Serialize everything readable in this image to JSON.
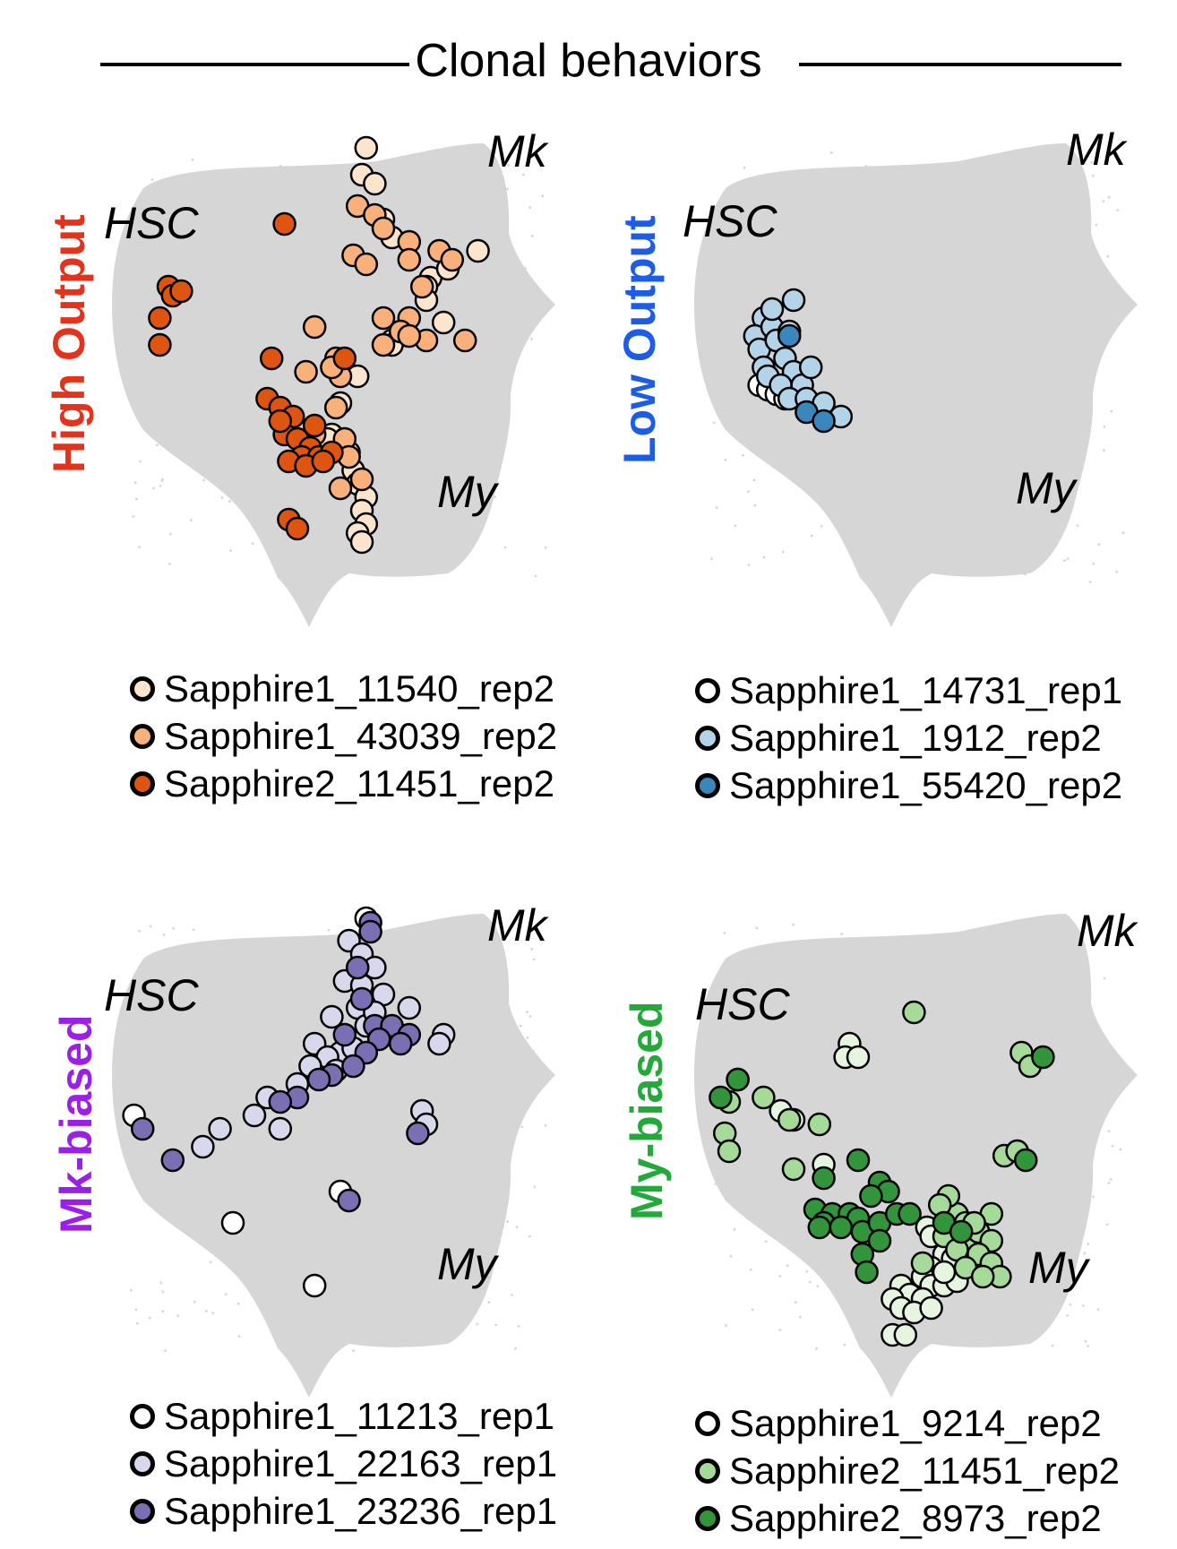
{
  "title": "Clonal behaviors",
  "chart_data": [
    {
      "type": "scatter",
      "row_label": "High Output",
      "row_label_color": "#e5331b",
      "annotations": {
        "hsc": "HSC",
        "mk": "Mk",
        "my": "My"
      },
      "series": [
        {
          "name": "Sapphire1_11540_rep2",
          "color": "#fde4cc",
          "points": [
            [
              0.56,
              0.02
            ],
            [
              0.55,
              0.08
            ],
            [
              0.58,
              0.1
            ],
            [
              0.6,
              0.18
            ],
            [
              0.62,
              0.22
            ],
            [
              0.71,
              0.31
            ],
            [
              0.7,
              0.33
            ],
            [
              0.75,
              0.29
            ],
            [
              0.82,
              0.25
            ],
            [
              0.7,
              0.36
            ],
            [
              0.62,
              0.45
            ],
            [
              0.54,
              0.53
            ],
            [
              0.5,
              0.59
            ],
            [
              0.48,
              0.66
            ],
            [
              0.47,
              0.67
            ],
            [
              0.52,
              0.7
            ],
            [
              0.53,
              0.74
            ],
            [
              0.54,
              0.77
            ],
            [
              0.56,
              0.8
            ],
            [
              0.55,
              0.83
            ],
            [
              0.56,
              0.86
            ],
            [
              0.54,
              0.88
            ],
            [
              0.55,
              0.9
            ],
            [
              0.62,
              0.46
            ],
            [
              0.74,
              0.41
            ]
          ]
        },
        {
          "name": "Sapphire1_43039_rep2",
          "color": "#f9b07a",
          "points": [
            [
              0.54,
              0.15
            ],
            [
              0.58,
              0.17
            ],
            [
              0.6,
              0.2
            ],
            [
              0.66,
              0.23
            ],
            [
              0.53,
              0.26
            ],
            [
              0.66,
              0.27
            ],
            [
              0.73,
              0.25
            ],
            [
              0.76,
              0.27
            ],
            [
              0.69,
              0.33
            ],
            [
              0.6,
              0.4
            ],
            [
              0.66,
              0.4
            ],
            [
              0.44,
              0.42
            ],
            [
              0.64,
              0.43
            ],
            [
              0.7,
              0.45
            ],
            [
              0.6,
              0.46
            ],
            [
              0.79,
              0.45
            ],
            [
              0.49,
              0.49
            ],
            [
              0.5,
              0.53
            ],
            [
              0.48,
              0.51
            ],
            [
              0.42,
              0.52
            ],
            [
              0.49,
              0.6
            ],
            [
              0.44,
              0.66
            ],
            [
              0.51,
              0.67
            ],
            [
              0.52,
              0.71
            ],
            [
              0.55,
              0.76
            ],
            [
              0.5,
              0.78
            ],
            [
              0.66,
              0.44
            ],
            [
              0.56,
              0.28
            ]
          ]
        },
        {
          "name": "Sapphire2_11451_rep2",
          "color": "#dd5511",
          "points": [
            [
              0.1,
              0.33
            ],
            [
              0.11,
              0.35
            ],
            [
              0.13,
              0.34
            ],
            [
              0.08,
              0.4
            ],
            [
              0.08,
              0.46
            ],
            [
              0.37,
              0.19
            ],
            [
              0.34,
              0.49
            ],
            [
              0.33,
              0.58
            ],
            [
              0.36,
              0.6
            ],
            [
              0.39,
              0.62
            ],
            [
              0.37,
              0.66
            ],
            [
              0.4,
              0.67
            ],
            [
              0.43,
              0.69
            ],
            [
              0.41,
              0.71
            ],
            [
              0.45,
              0.71
            ],
            [
              0.38,
              0.72
            ],
            [
              0.42,
              0.73
            ],
            [
              0.48,
              0.7
            ],
            [
              0.46,
              0.72
            ],
            [
              0.51,
              0.49
            ],
            [
              0.38,
              0.85
            ],
            [
              0.4,
              0.87
            ],
            [
              0.36,
              0.63
            ],
            [
              0.44,
              0.64
            ]
          ]
        }
      ]
    },
    {
      "type": "scatter",
      "row_label": "Low Output",
      "row_label_color": "#1c5ce6",
      "annotations": {
        "hsc": "HSC",
        "mk": "Mk",
        "my": "My"
      },
      "series": [
        {
          "name": "Sapphire1_14731_rep1",
          "color": "#ffffff",
          "points": [
            [
              0.12,
              0.55
            ],
            [
              0.14,
              0.56
            ],
            [
              0.16,
              0.57
            ],
            [
              0.18,
              0.58
            ]
          ]
        },
        {
          "name": "Sapphire1_1912_rep2",
          "color": "#b3d3e8",
          "points": [
            [
              0.13,
              0.4
            ],
            [
              0.11,
              0.44
            ],
            [
              0.15,
              0.42
            ],
            [
              0.12,
              0.47
            ],
            [
              0.16,
              0.45
            ],
            [
              0.13,
              0.51
            ],
            [
              0.18,
              0.49
            ],
            [
              0.14,
              0.53
            ],
            [
              0.2,
              0.52
            ],
            [
              0.17,
              0.55
            ],
            [
              0.22,
              0.55
            ],
            [
              0.24,
              0.51
            ],
            [
              0.19,
              0.58
            ],
            [
              0.23,
              0.58
            ],
            [
              0.27,
              0.59
            ],
            [
              0.31,
              0.62
            ],
            [
              0.15,
              0.38
            ],
            [
              0.19,
              0.43
            ],
            [
              0.2,
              0.36
            ]
          ]
        },
        {
          "name": "Sapphire1_55420_rep2",
          "color": "#3a87be",
          "points": [
            [
              0.19,
              0.44
            ],
            [
              0.23,
              0.61
            ],
            [
              0.27,
              0.63
            ]
          ]
        }
      ]
    },
    {
      "type": "scatter",
      "row_label": "Mk-biased",
      "row_label_color": "#9b1fe6",
      "annotations": {
        "hsc": "HSC",
        "mk": "Mk",
        "my": "My"
      },
      "series": [
        {
          "name": "Sapphire1_11213_rep1",
          "color": "#ffffff",
          "points": [
            [
              0.02,
              0.46
            ],
            [
              0.25,
              0.7
            ],
            [
              0.44,
              0.84
            ],
            [
              0.56,
              0.02
            ],
            [
              0.5,
              0.63
            ]
          ]
        },
        {
          "name": "Sapphire1_22163_rep1",
          "color": "#d8d8ec",
          "points": [
            [
              0.52,
              0.07
            ],
            [
              0.55,
              0.1
            ],
            [
              0.58,
              0.13
            ],
            [
              0.51,
              0.16
            ],
            [
              0.55,
              0.17
            ],
            [
              0.6,
              0.19
            ],
            [
              0.54,
              0.22
            ],
            [
              0.48,
              0.24
            ],
            [
              0.56,
              0.26
            ],
            [
              0.6,
              0.27
            ],
            [
              0.44,
              0.3
            ],
            [
              0.5,
              0.32
            ],
            [
              0.47,
              0.33
            ],
            [
              0.43,
              0.35
            ],
            [
              0.4,
              0.39
            ],
            [
              0.33,
              0.42
            ],
            [
              0.3,
              0.46
            ],
            [
              0.22,
              0.49
            ],
            [
              0.18,
              0.53
            ],
            [
              0.53,
              0.31
            ],
            [
              0.49,
              0.36
            ],
            [
              0.58,
              0.23
            ],
            [
              0.66,
              0.22
            ],
            [
              0.74,
              0.28
            ],
            [
              0.73,
              0.3
            ],
            [
              0.69,
              0.45
            ],
            [
              0.7,
              0.48
            ],
            [
              0.36,
              0.49
            ]
          ]
        },
        {
          "name": "Sapphire1_23236_rep1",
          "color": "#7a6fb3",
          "points": [
            [
              0.57,
              0.03
            ],
            [
              0.57,
              0.05
            ],
            [
              0.54,
              0.13
            ],
            [
              0.55,
              0.2
            ],
            [
              0.58,
              0.26
            ],
            [
              0.62,
              0.26
            ],
            [
              0.66,
              0.28
            ],
            [
              0.64,
              0.3
            ],
            [
              0.59,
              0.29
            ],
            [
              0.56,
              0.32
            ],
            [
              0.53,
              0.35
            ],
            [
              0.48,
              0.37
            ],
            [
              0.45,
              0.38
            ],
            [
              0.4,
              0.42
            ],
            [
              0.36,
              0.43
            ],
            [
              0.04,
              0.49
            ],
            [
              0.11,
              0.56
            ],
            [
              0.68,
              0.5
            ],
            [
              0.52,
              0.65
            ],
            [
              0.51,
              0.28
            ]
          ]
        }
      ]
    },
    {
      "type": "scatter",
      "row_label": "My-biased",
      "row_label_color": "#23a83a",
      "annotations": {
        "hsc": "HSC",
        "mk": "Mk",
        "my": "My"
      },
      "series": [
        {
          "name": "Sapphire1_9214_rep2",
          "color": "#e6f5e0",
          "points": [
            [
              0.33,
              0.3
            ],
            [
              0.32,
              0.33
            ],
            [
              0.35,
              0.33
            ],
            [
              0.17,
              0.45
            ],
            [
              0.2,
              0.47
            ],
            [
              0.27,
              0.57
            ],
            [
              0.55,
              0.7
            ],
            [
              0.51,
              0.71
            ],
            [
              0.52,
              0.73
            ],
            [
              0.57,
              0.74
            ],
            [
              0.55,
              0.77
            ],
            [
              0.57,
              0.78
            ],
            [
              0.52,
              0.8
            ],
            [
              0.5,
              0.82
            ],
            [
              0.52,
              0.84
            ],
            [
              0.55,
              0.84
            ],
            [
              0.45,
              0.84
            ],
            [
              0.47,
              0.86
            ],
            [
              0.43,
              0.87
            ],
            [
              0.45,
              0.89
            ],
            [
              0.5,
              0.87
            ],
            [
              0.48,
              0.9
            ],
            [
              0.52,
              0.89
            ],
            [
              0.58,
              0.83
            ],
            [
              0.55,
              0.81
            ],
            [
              0.43,
              0.95
            ],
            [
              0.46,
              0.95
            ],
            [
              0.62,
              0.78
            ],
            [
              0.65,
              0.8
            ]
          ]
        },
        {
          "name": "Sapphire2_11451_rep2",
          "color": "#a6da98",
          "points": [
            [
              0.07,
              0.38
            ],
            [
              0.05,
              0.43
            ],
            [
              0.04,
              0.5
            ],
            [
              0.05,
              0.54
            ],
            [
              0.13,
              0.42
            ],
            [
              0.19,
              0.47
            ],
            [
              0.26,
              0.48
            ],
            [
              0.2,
              0.58
            ],
            [
              0.48,
              0.23
            ],
            [
              0.73,
              0.32
            ],
            [
              0.75,
              0.35
            ],
            [
              0.69,
              0.55
            ],
            [
              0.58,
              0.68
            ],
            [
              0.56,
              0.64
            ],
            [
              0.6,
              0.7
            ],
            [
              0.6,
              0.74
            ],
            [
              0.55,
              0.73
            ],
            [
              0.58,
              0.76
            ],
            [
              0.63,
              0.72
            ],
            [
              0.66,
              0.74
            ],
            [
              0.63,
              0.77
            ],
            [
              0.66,
              0.79
            ],
            [
              0.68,
              0.82
            ],
            [
              0.66,
              0.68
            ],
            [
              0.62,
              0.7
            ],
            [
              0.72,
              0.54
            ],
            [
              0.54,
              0.66
            ],
            [
              0.6,
              0.8
            ],
            [
              0.64,
              0.82
            ],
            [
              0.5,
              0.79
            ]
          ]
        },
        {
          "name": "Sapphire2_8973_rep2",
          "color": "#32953c",
          "points": [
            [
              0.03,
              0.42
            ],
            [
              0.07,
              0.38
            ],
            [
              0.78,
              0.33
            ],
            [
              0.74,
              0.56
            ],
            [
              0.27,
              0.6
            ],
            [
              0.35,
              0.56
            ],
            [
              0.4,
              0.61
            ],
            [
              0.42,
              0.63
            ],
            [
              0.38,
              0.64
            ],
            [
              0.25,
              0.67
            ],
            [
              0.29,
              0.68
            ],
            [
              0.33,
              0.68
            ],
            [
              0.35,
              0.69
            ],
            [
              0.27,
              0.7
            ],
            [
              0.31,
              0.71
            ],
            [
              0.36,
              0.72
            ],
            [
              0.4,
              0.7
            ],
            [
              0.44,
              0.68
            ],
            [
              0.47,
              0.68
            ],
            [
              0.4,
              0.74
            ],
            [
              0.36,
              0.77
            ],
            [
              0.37,
              0.81
            ],
            [
              0.55,
              0.7
            ],
            [
              0.59,
              0.72
            ],
            [
              0.26,
              0.71
            ]
          ]
        }
      ]
    }
  ]
}
